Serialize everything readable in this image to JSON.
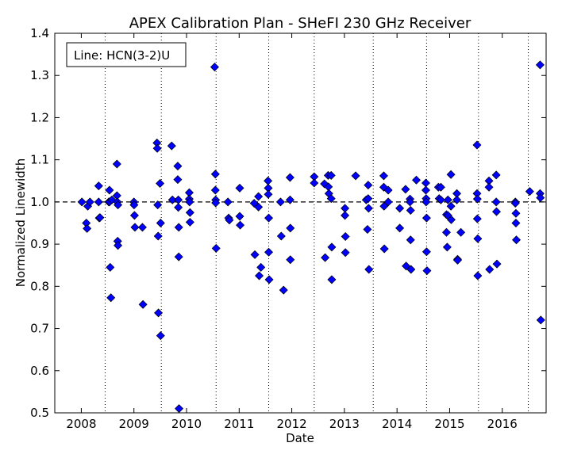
{
  "chart_data": {
    "type": "scatter",
    "title": "APEX Calibration Plan - SHeFI 230 GHz Receiver",
    "xlabel": "Date",
    "ylabel": "Normalized Linewidth",
    "legend_text": "Line: HCN(3-2)U",
    "legend_placement": "top-left",
    "x_axis": "date",
    "xlim": [
      "2007-07-01",
      "2016-11-01"
    ],
    "ylim": [
      0.5,
      1.4
    ],
    "xticks": [
      "2008",
      "2009",
      "2010",
      "2011",
      "2012",
      "2013",
      "2014",
      "2015",
      "2016"
    ],
    "yticks": [
      "0.5",
      "0.6",
      "0.7",
      "0.8",
      "0.9",
      "1.0",
      "1.1",
      "1.2",
      "1.3",
      "1.4"
    ],
    "reference_line": {
      "y": 1.0,
      "style": "dashed"
    },
    "vertical_dotted_lines": [
      "2008-06-15",
      "2009-07-10",
      "2010-07-25",
      "2011-07-25",
      "2012-06-05",
      "2013-07-20",
      "2014-07-25",
      "2015-07-20",
      "2016-06-30"
    ],
    "marker_color": "#0000ff",
    "marker_edge_color": "#000000",
    "series": [
      {
        "points": [
          [
            "2008-01-05",
            1.0
          ],
          [
            "2008-02-05",
            0.95
          ],
          [
            "2008-02-10",
            0.937
          ],
          [
            "2008-02-15",
            0.99
          ],
          [
            "2008-03-01",
            1.0
          ],
          [
            "2008-05-01",
            1.038
          ],
          [
            "2008-05-01",
            1.0
          ],
          [
            "2008-05-05",
            0.962
          ],
          [
            "2008-05-10",
            0.963
          ],
          [
            "2008-07-10",
            1.0
          ],
          [
            "2008-07-15",
            1.028
          ],
          [
            "2008-07-15",
            1.0
          ],
          [
            "2008-07-20",
            0.845
          ],
          [
            "2008-07-25",
            0.773
          ],
          [
            "2008-08-01",
            1.005
          ],
          [
            "2008-09-05",
            1.09
          ],
          [
            "2008-09-05",
            1.015
          ],
          [
            "2008-09-08",
            1.0
          ],
          [
            "2008-09-10",
            0.907
          ],
          [
            "2008-09-12",
            0.897
          ],
          [
            "2008-09-12",
            0.993
          ],
          [
            "2009-01-01",
            1.0
          ],
          [
            "2009-01-02",
            0.993
          ],
          [
            "2009-01-05",
            0.968
          ],
          [
            "2009-01-08",
            0.94
          ],
          [
            "2009-03-01",
            0.94
          ],
          [
            "2009-03-05",
            0.757
          ],
          [
            "2009-06-10",
            1.14
          ],
          [
            "2009-06-12",
            1.127
          ],
          [
            "2009-06-15",
            0.993
          ],
          [
            "2009-06-18",
            0.919
          ],
          [
            "2009-06-20",
            0.737
          ],
          [
            "2009-07-01",
            1.044
          ],
          [
            "2009-07-05",
            0.683
          ],
          [
            "2009-07-05",
            0.95
          ],
          [
            "2009-09-20",
            1.133
          ],
          [
            "2009-09-25",
            1.005
          ],
          [
            "2009-11-01",
            1.085
          ],
          [
            "2009-11-01",
            1.053
          ],
          [
            "2009-11-05",
            1.005
          ],
          [
            "2009-11-05",
            0.987
          ],
          [
            "2009-11-08",
            0.94
          ],
          [
            "2009-11-08",
            0.87
          ],
          [
            "2009-11-10",
            0.51
          ],
          [
            "2010-01-20",
            1.022
          ],
          [
            "2010-01-20",
            1.007
          ],
          [
            "2010-01-22",
            1.0
          ],
          [
            "2010-01-25",
            0.975
          ],
          [
            "2010-01-25",
            0.952
          ],
          [
            "2010-07-15",
            1.32
          ],
          [
            "2010-07-20",
            1.066
          ],
          [
            "2010-07-20",
            1.028
          ],
          [
            "2010-07-22",
            1.005
          ],
          [
            "2010-07-22",
            0.998
          ],
          [
            "2010-07-25",
            0.89
          ],
          [
            "2010-10-15",
            1.0
          ],
          [
            "2010-10-20",
            0.962
          ],
          [
            "2010-10-25",
            0.957
          ],
          [
            "2011-01-05",
            1.033
          ],
          [
            "2011-01-05",
            0.966
          ],
          [
            "2011-01-08",
            0.945
          ],
          [
            "2011-04-15",
            0.997
          ],
          [
            "2011-04-20",
            0.875
          ],
          [
            "2011-05-15",
            1.013
          ],
          [
            "2011-05-15",
            0.988
          ],
          [
            "2011-05-20",
            0.825
          ],
          [
            "2011-06-01",
            0.845
          ],
          [
            "2011-07-20",
            1.05
          ],
          [
            "2011-07-22",
            1.033
          ],
          [
            "2011-07-22",
            1.018
          ],
          [
            "2011-07-25",
            0.962
          ],
          [
            "2011-07-25",
            0.881
          ],
          [
            "2011-07-28",
            0.816
          ],
          [
            "2011-10-15",
            1.0
          ],
          [
            "2011-10-20",
            0.919
          ],
          [
            "2011-11-05",
            0.791
          ],
          [
            "2011-12-20",
            1.058
          ],
          [
            "2011-12-20",
            1.005
          ],
          [
            "2011-12-22",
            0.938
          ],
          [
            "2011-12-22",
            0.863
          ],
          [
            "2012-06-05",
            1.06
          ],
          [
            "2012-06-05",
            1.045
          ],
          [
            "2012-08-15",
            1.043
          ],
          [
            "2012-08-20",
            0.868
          ],
          [
            "2012-09-10",
            1.063
          ],
          [
            "2012-09-12",
            1.036
          ],
          [
            "2012-09-15",
            1.02
          ],
          [
            "2012-10-01",
            1.063
          ],
          [
            "2012-10-01",
            1.008
          ],
          [
            "2012-10-05",
            0.893
          ],
          [
            "2012-10-05",
            0.816
          ],
          [
            "2013-01-05",
            0.985
          ],
          [
            "2013-01-05",
            0.968
          ],
          [
            "2013-01-08",
            0.918
          ],
          [
            "2013-01-08",
            0.88
          ],
          [
            "2013-03-20",
            1.062
          ],
          [
            "2013-06-01",
            1.005
          ],
          [
            "2013-06-10",
            0.935
          ],
          [
            "2013-06-15",
            1.04
          ],
          [
            "2013-06-15",
            1.008
          ],
          [
            "2013-06-18",
            0.985
          ],
          [
            "2013-06-20",
            0.84
          ],
          [
            "2013-10-01",
            1.062
          ],
          [
            "2013-10-01",
            1.035
          ],
          [
            "2013-10-03",
            0.99
          ],
          [
            "2013-10-05",
            0.889
          ],
          [
            "2013-11-01",
            1.028
          ],
          [
            "2013-11-01",
            1.0
          ],
          [
            "2014-01-20",
            0.985
          ],
          [
            "2014-01-20",
            0.938
          ],
          [
            "2014-03-01",
            1.03
          ],
          [
            "2014-03-05",
            0.848
          ],
          [
            "2014-04-01",
            1.007
          ],
          [
            "2014-04-01",
            1.0
          ],
          [
            "2014-04-05",
            0.98
          ],
          [
            "2014-04-05",
            0.91
          ],
          [
            "2014-04-08",
            0.84
          ],
          [
            "2014-05-15",
            1.052
          ],
          [
            "2014-07-20",
            1.045
          ],
          [
            "2014-07-20",
            1.028
          ],
          [
            "2014-07-22",
            1.008
          ],
          [
            "2014-07-22",
            1.0
          ],
          [
            "2014-07-25",
            0.962
          ],
          [
            "2014-07-25",
            0.882
          ],
          [
            "2014-07-28",
            0.837
          ],
          [
            "2014-10-15",
            1.035
          ],
          [
            "2014-10-20",
            1.008
          ],
          [
            "2014-11-01",
            1.035
          ],
          [
            "2014-11-01",
            1.005
          ],
          [
            "2014-12-10",
            0.97
          ],
          [
            "2014-12-10",
            0.928
          ],
          [
            "2014-12-15",
            0.893
          ],
          [
            "2014-12-20",
            1.005
          ],
          [
            "2014-12-20",
            0.968
          ],
          [
            "2015-01-10",
            1.065
          ],
          [
            "2015-01-10",
            0.99
          ],
          [
            "2015-01-12",
            0.958
          ],
          [
            "2015-02-20",
            1.02
          ],
          [
            "2015-02-20",
            1.005
          ],
          [
            "2015-02-25",
            0.864
          ],
          [
            "2015-02-25",
            0.862
          ],
          [
            "2015-03-20",
            0.928
          ],
          [
            "2015-07-10",
            1.135
          ],
          [
            "2015-07-10",
            1.02
          ],
          [
            "2015-07-12",
            1.007
          ],
          [
            "2015-07-12",
            0.96
          ],
          [
            "2015-07-15",
            0.913
          ],
          [
            "2015-07-15",
            0.825
          ],
          [
            "2015-10-01",
            1.05
          ],
          [
            "2015-10-01",
            1.035
          ],
          [
            "2015-10-05",
            0.84
          ],
          [
            "2015-11-20",
            1.064
          ],
          [
            "2015-11-20",
            1.0
          ],
          [
            "2015-11-22",
            0.977
          ],
          [
            "2015-11-25",
            0.853
          ],
          [
            "2016-04-01",
            1.0
          ],
          [
            "2016-04-01",
            0.997
          ],
          [
            "2016-04-05",
            0.973
          ],
          [
            "2016-04-05",
            0.95
          ],
          [
            "2016-04-08",
            0.91
          ],
          [
            "2016-07-10",
            1.025
          ],
          [
            "2016-09-20",
            1.325
          ],
          [
            "2016-09-20",
            1.02
          ],
          [
            "2016-09-22",
            1.01
          ],
          [
            "2016-09-25",
            0.72
          ]
        ]
      }
    ]
  }
}
